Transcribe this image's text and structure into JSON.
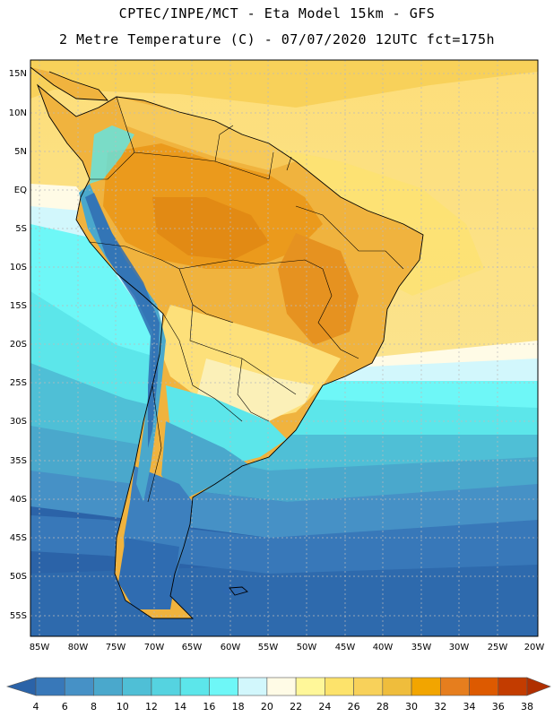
{
  "title": {
    "line1": "CPTEC/INPE/MCT -  Eta Model 15km - GFS",
    "line2": "2 Metre Temperature (C) - 07/07/2020 12UTC fct=175h"
  },
  "axes": {
    "lat_labels": [
      "15N",
      "10N",
      "5N",
      "EQ",
      "5S",
      "10S",
      "15S",
      "20S",
      "25S",
      "30S",
      "35S",
      "40S",
      "45S",
      "50S",
      "55S"
    ],
    "lon_labels": [
      "85W",
      "80W",
      "75W",
      "70W",
      "65W",
      "60W",
      "55W",
      "50W",
      "45W",
      "40W",
      "35W",
      "30W",
      "25W",
      "20W"
    ]
  },
  "colorbar": {
    "labels": [
      "4",
      "6",
      "8",
      "10",
      "12",
      "14",
      "16",
      "18",
      "20",
      "22",
      "24",
      "26",
      "28",
      "30",
      "32",
      "34",
      "36",
      "38"
    ],
    "colors": [
      "#2b63a8",
      "#3878b9",
      "#4691c6",
      "#4aa8cc",
      "#4fbfd6",
      "#55d3e0",
      "#5ce6ea",
      "#6ef7f7",
      "#d2f7fc",
      "#fffbe6",
      "#fff799",
      "#fde36b",
      "#f8d15a",
      "#efbd3c",
      "#f2a500",
      "#e67e1e",
      "#dd5a00",
      "#c33c00",
      "#b02f00"
    ]
  },
  "legend_tones": {
    "cold_ocean": "#2e69b0",
    "cool": "#4391c8",
    "mild": "#57d6e4",
    "warm_ocean": "#fbe38a",
    "hot_land": "#f0a52e",
    "very_hot": "#e9951f"
  }
}
